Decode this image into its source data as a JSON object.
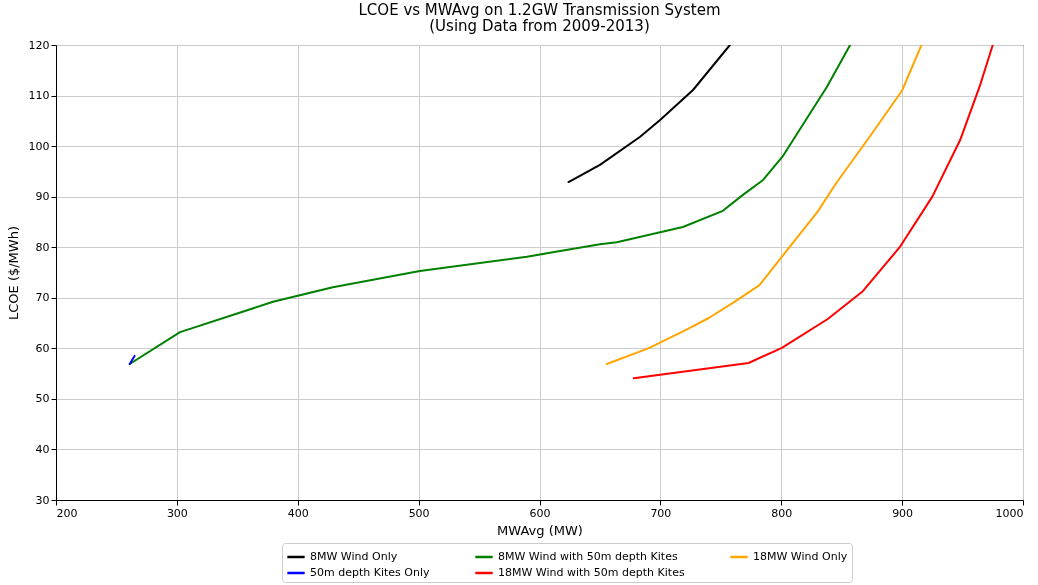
{
  "chart_data": {
    "type": "line",
    "title": "LCOE vs MWAvg on 1.2GW Transmission System",
    "subtitle": "(Using Data from 2009-2013)",
    "xlabel": "MWAvg (MW)",
    "ylabel": "LCOE ($/MWh)",
    "xlim": [
      200,
      1000
    ],
    "xticks": [
      200,
      300,
      400,
      500,
      600,
      700,
      800,
      900,
      1000
    ],
    "ylim": [
      30,
      120
    ],
    "yticks": [
      30,
      40,
      50,
      60,
      70,
      80,
      90,
      100,
      110,
      120
    ],
    "grid": true,
    "legend": "bottom",
    "line_style": "solid",
    "marker": "none",
    "series": [
      {
        "name": "8MW Wind Only",
        "color": "#000000",
        "x": [
          624,
          650,
          683,
          700,
          727,
          757.5
        ],
        "values": [
          92.9,
          96.3,
          101.8,
          105.2,
          111.1,
          120
        ]
      },
      {
        "name": "8MW Wind with 50m depth Kites",
        "color": "#008000",
        "x": [
          261,
          302.6,
          379.5,
          429,
          501,
          589.6,
          608.6,
          650,
          664,
          718.6,
          751.7,
          768,
          785,
          801,
          837.7,
          857
        ],
        "values": [
          56.9,
          63.2,
          69.2,
          72.1,
          75.3,
          78.1,
          78.9,
          80.6,
          81,
          84,
          87.2,
          90.3,
          93.3,
          97.9,
          111.7,
          120
        ]
      },
      {
        "name": "18MW Wind Only",
        "color": "#ffa500",
        "x": [
          655.7,
          690,
          720,
          740,
          760,
          782,
          800.5,
          815,
          830,
          845,
          860,
          873,
          900,
          916
        ],
        "values": [
          56.9,
          60,
          63.5,
          66,
          69,
          72.5,
          78.1,
          82.5,
          87,
          92.5,
          97.5,
          101.8,
          111,
          120
        ]
      },
      {
        "name": "50m depth Kites Only",
        "color": "#0000ff",
        "x": [
          261,
          265
        ],
        "values": [
          56.9,
          58.5
        ]
      },
      {
        "name": "18MW Wind with 50m depth Kites",
        "color": "#ff0000",
        "x": [
          678,
          773,
          800.5,
          838.5,
          867.5,
          898,
          925,
          948,
          964,
          975
        ],
        "values": [
          54.1,
          57.1,
          60.1,
          65.8,
          71.3,
          80,
          90,
          101.2,
          111.7,
          120
        ]
      }
    ]
  }
}
